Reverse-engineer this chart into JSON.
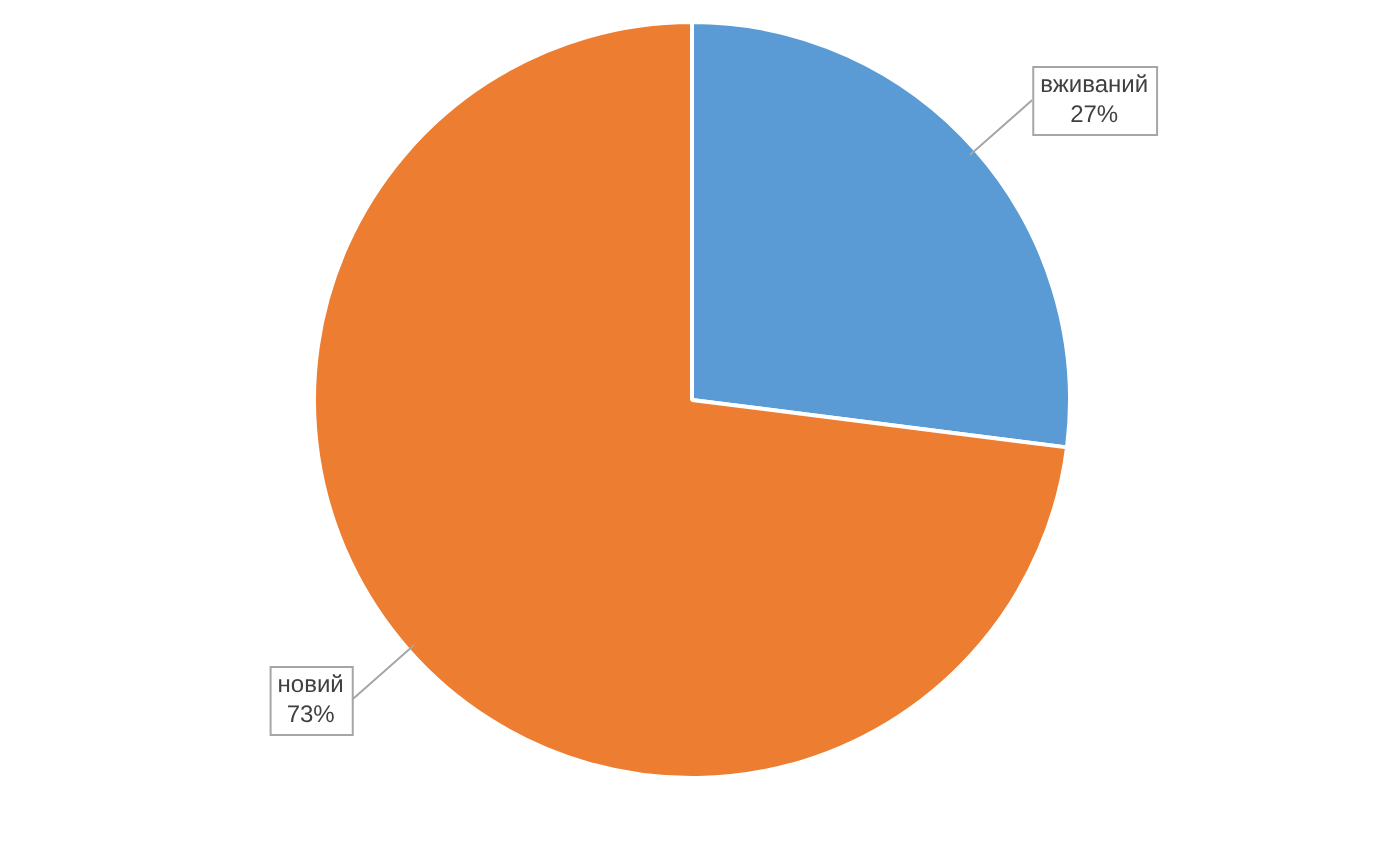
{
  "chart_data": {
    "type": "pie",
    "categories": [
      "вживаний",
      "новий"
    ],
    "values": [
      27,
      73
    ],
    "colors": [
      "#5b9bd5",
      "#ed7d31"
    ],
    "value_labels": [
      "27%",
      "73%"
    ],
    "legend": false
  }
}
